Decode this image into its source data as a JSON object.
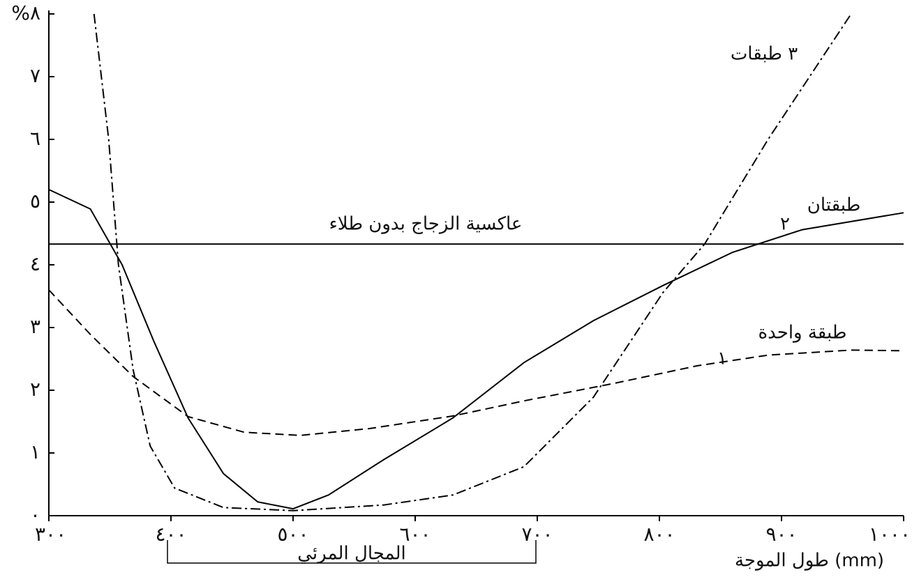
{
  "chart_data": {
    "type": "line",
    "x_label": "طول الموجة (mm)",
    "range_label": "المجال المرئي",
    "visible_range": [
      400,
      700
    ],
    "xlim": [
      300,
      1000
    ],
    "xticks": [
      {
        "value": 300,
        "label": "٣٠٠"
      },
      {
        "value": 400,
        "label": "٤٠٠"
      },
      {
        "value": 500,
        "label": "٥٠٠"
      },
      {
        "value": 600,
        "label": "٦٠٠"
      },
      {
        "value": 700,
        "label": "٧٠٠"
      },
      {
        "value": 800,
        "label": "٨٠٠"
      },
      {
        "value": 900,
        "label": "٩٠٠"
      },
      {
        "value": 1000,
        "label": "١٠٠٠"
      }
    ],
    "ylim": [
      0,
      8
    ],
    "yticks": [
      {
        "value": 0,
        "label": "٠"
      },
      {
        "value": 1,
        "label": "١"
      },
      {
        "value": 2,
        "label": "٢"
      },
      {
        "value": 3,
        "label": "٣"
      },
      {
        "value": 4,
        "label": "٤"
      },
      {
        "value": 5,
        "label": "٥"
      },
      {
        "value": 6,
        "label": "٦"
      },
      {
        "value": 7,
        "label": "٧"
      },
      {
        "value": 8,
        "label": "%٨"
      }
    ],
    "grid": false,
    "series": [
      {
        "name": "عاكسية الزجاج بدون طلاء",
        "color": "#000000",
        "style": "solid",
        "x": [
          300,
          1000
        ],
        "values": [
          4.33,
          4.33
        ]
      },
      {
        "name": "طبقة واحدة",
        "number": "١",
        "color": "#000000",
        "style": "dashed",
        "x": [
          300,
          334,
          369,
          414,
          460,
          506,
          563,
          631,
          689,
          763,
          831,
          889,
          957,
          1000
        ],
        "values": [
          3.6,
          2.89,
          2.22,
          1.58,
          1.33,
          1.28,
          1.39,
          1.59,
          1.83,
          2.11,
          2.39,
          2.56,
          2.64,
          2.63
        ]
      },
      {
        "name": "طبقتان",
        "number": "٢",
        "color": "#000000",
        "style": "solid",
        "x": [
          300,
          334,
          360,
          386,
          414,
          443,
          471,
          500,
          529,
          574,
          631,
          689,
          746,
          803,
          860,
          917,
          1000
        ],
        "values": [
          5.2,
          4.89,
          4.0,
          2.78,
          1.56,
          0.67,
          0.22,
          0.11,
          0.33,
          0.89,
          1.56,
          2.44,
          3.11,
          3.67,
          4.2,
          4.56,
          4.83
        ]
      },
      {
        "name": "٣ طبقات",
        "color": "#000000",
        "style": "dashdot",
        "x": [
          337,
          349,
          357,
          369,
          383,
          403,
          443,
          500,
          574,
          631,
          689,
          746,
          803,
          837,
          889,
          957
        ],
        "values": [
          8,
          6,
          4,
          2.33,
          1.11,
          0.44,
          0.13,
          0.08,
          0.17,
          0.33,
          0.78,
          1.89,
          3.56,
          4.33,
          6,
          8
        ]
      }
    ]
  }
}
